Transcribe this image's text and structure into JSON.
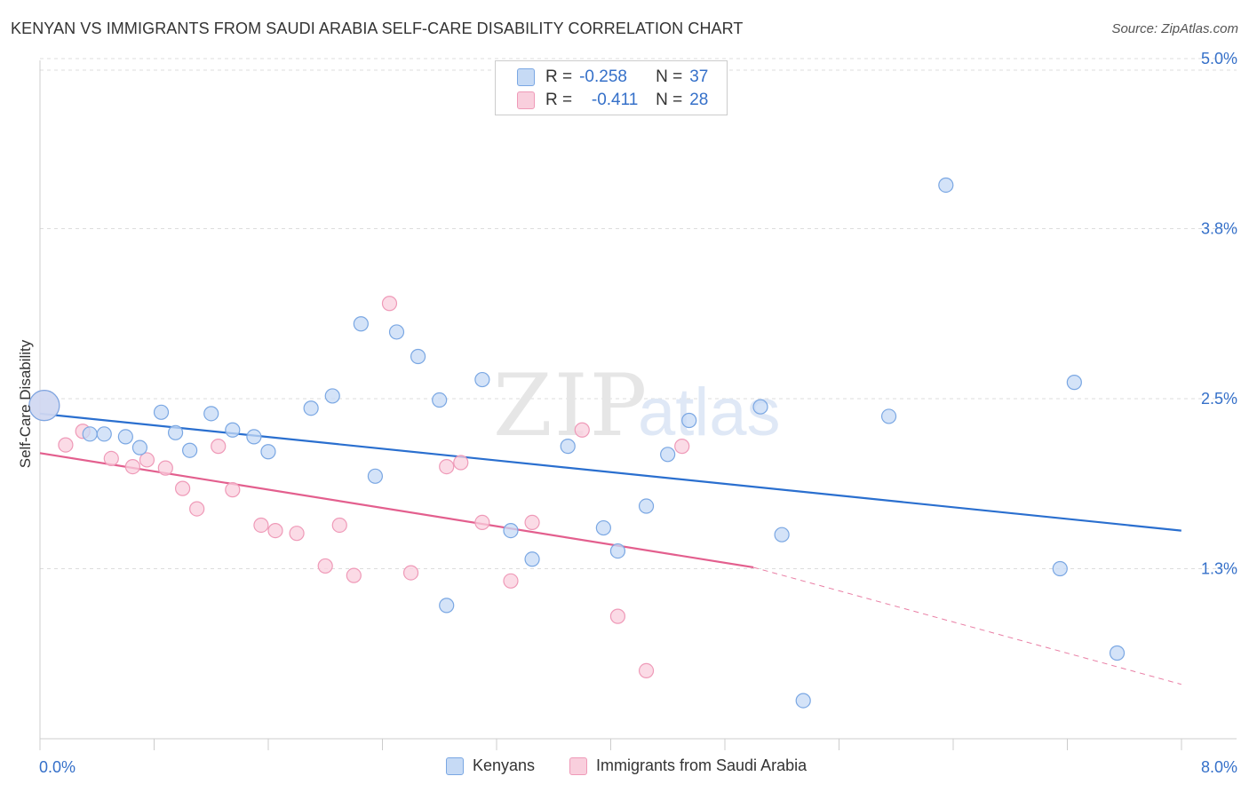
{
  "title": "KENYAN VS IMMIGRANTS FROM SAUDI ARABIA SELF-CARE DISABILITY CORRELATION CHART",
  "source": "Source: ZipAtlas.com",
  "watermark": {
    "zip": "ZIP",
    "atlas": "atlas"
  },
  "colors": {
    "blue_fill": "#c6daf5",
    "blue_stroke": "#7aa7e3",
    "blue_line": "#2a6fcf",
    "pink_fill": "#f9cfdd",
    "pink_stroke": "#ef9ab8",
    "pink_line": "#e35f8e",
    "tick_label": "#3570c9",
    "grid": "#dddddd"
  },
  "legend_top": [
    {
      "r_label": "R =",
      "r_value": "-0.258",
      "n_label": "N =",
      "n_value": "37"
    },
    {
      "r_label": "R =",
      "r_value": "-0.411",
      "n_label": "N =",
      "n_value": "28"
    }
  ],
  "chart_data": {
    "type": "scatter",
    "title": "KENYAN VS IMMIGRANTS FROM SAUDI ARABIA SELF-CARE DISABILITY CORRELATION CHART",
    "xlabel": "",
    "ylabel": "Self-Care Disability",
    "xlim": [
      0.0,
      8.0
    ],
    "ylim": [
      0.0,
      5.2
    ],
    "x_tick_labels": [
      "0.0%",
      "8.0%"
    ],
    "y_ticks": [
      1.25,
      2.5,
      3.75,
      5.0
    ],
    "y_tick_labels": [
      "1.3%",
      "2.5%",
      "3.8%",
      "5.0%"
    ],
    "grid": "horizontal dashed",
    "legend_position": "top-center and bottom",
    "series": [
      {
        "name": "Kenyans",
        "color": "blue",
        "points": [
          [
            0.03,
            2.45
          ],
          [
            0.35,
            2.24
          ],
          [
            0.45,
            2.24
          ],
          [
            0.6,
            2.22
          ],
          [
            0.7,
            2.14
          ],
          [
            0.85,
            2.4
          ],
          [
            0.95,
            2.25
          ],
          [
            1.05,
            2.12
          ],
          [
            1.2,
            2.39
          ],
          [
            1.35,
            2.27
          ],
          [
            1.5,
            2.22
          ],
          [
            1.6,
            2.11
          ],
          [
            1.9,
            2.43
          ],
          [
            2.05,
            2.52
          ],
          [
            2.25,
            3.05
          ],
          [
            2.35,
            1.93
          ],
          [
            2.5,
            2.99
          ],
          [
            2.65,
            2.81
          ],
          [
            2.8,
            2.49
          ],
          [
            2.85,
            0.98
          ],
          [
            3.1,
            2.64
          ],
          [
            3.3,
            1.53
          ],
          [
            3.45,
            1.32
          ],
          [
            3.7,
            2.15
          ],
          [
            3.95,
            1.55
          ],
          [
            4.05,
            1.38
          ],
          [
            4.25,
            1.71
          ],
          [
            4.4,
            2.09
          ],
          [
            4.55,
            2.34
          ],
          [
            5.05,
            2.44
          ],
          [
            5.2,
            1.5
          ],
          [
            5.35,
            0.28
          ],
          [
            5.95,
            2.37
          ],
          [
            6.35,
            4.07
          ],
          [
            7.15,
            1.25
          ],
          [
            7.25,
            2.62
          ],
          [
            7.55,
            0.63
          ]
        ],
        "trend": {
          "x": [
            0.0,
            8.0
          ],
          "y": [
            2.39,
            1.53
          ]
        }
      },
      {
        "name": "Immigrants from Saudi Arabia",
        "color": "pink",
        "points": [
          [
            0.03,
            2.45
          ],
          [
            0.18,
            2.16
          ],
          [
            0.3,
            2.26
          ],
          [
            0.5,
            2.06
          ],
          [
            0.65,
            2.0
          ],
          [
            0.75,
            2.05
          ],
          [
            0.88,
            1.99
          ],
          [
            1.0,
            1.84
          ],
          [
            1.1,
            1.69
          ],
          [
            1.25,
            2.15
          ],
          [
            1.35,
            1.83
          ],
          [
            1.55,
            1.57
          ],
          [
            1.65,
            1.53
          ],
          [
            1.8,
            1.51
          ],
          [
            2.0,
            1.27
          ],
          [
            2.1,
            1.57
          ],
          [
            2.2,
            1.2
          ],
          [
            2.45,
            3.2
          ],
          [
            2.6,
            1.22
          ],
          [
            2.85,
            2.0
          ],
          [
            2.95,
            2.03
          ],
          [
            3.1,
            1.59
          ],
          [
            3.3,
            1.16
          ],
          [
            3.45,
            1.59
          ],
          [
            3.8,
            2.27
          ],
          [
            4.05,
            0.9
          ],
          [
            4.25,
            0.5
          ],
          [
            4.5,
            2.15
          ]
        ],
        "trend": {
          "x": [
            0.0,
            5.0
          ],
          "y": [
            2.1,
            1.26
          ]
        },
        "trend_extension": {
          "x": [
            5.0,
            8.0
          ],
          "y": [
            1.26,
            0.4
          ]
        }
      }
    ]
  },
  "legend_bottom": [
    {
      "label": "Kenyans"
    },
    {
      "label": "Immigrants from Saudi Arabia"
    }
  ]
}
